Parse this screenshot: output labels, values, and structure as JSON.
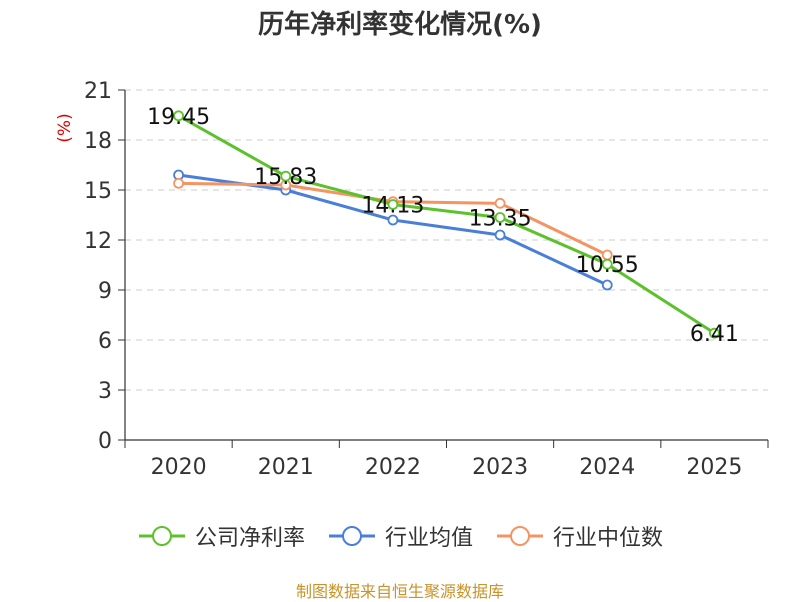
{
  "chart_data": {
    "type": "line",
    "title": "历年净利率变化情况(%)",
    "ylabel": "(%)",
    "xlabel": "",
    "categories": [
      "2020",
      "2021",
      "2022",
      "2023",
      "2024",
      "2025"
    ],
    "ylim": [
      0,
      21
    ],
    "yticks": [
      0,
      3,
      6,
      9,
      12,
      15,
      18,
      21
    ],
    "grid": true,
    "legend_position": "bottom",
    "series": [
      {
        "name": "公司净利率",
        "color": "#5cc12c",
        "values": [
          19.45,
          15.83,
          14.13,
          13.35,
          10.55,
          6.41
        ],
        "labeled": true
      },
      {
        "name": "行业均值",
        "color": "#4a7fd8",
        "values": [
          15.9,
          15.0,
          13.2,
          12.3,
          9.3,
          null
        ],
        "labeled": false
      },
      {
        "name": "行业中位数",
        "color": "#f39462",
        "values": [
          15.4,
          15.3,
          14.3,
          14.2,
          11.1,
          null
        ],
        "labeled": false
      }
    ],
    "data_labels": [
      "19.45",
      "15.83",
      "14.13",
      "13.35",
      "10.55",
      "6.41"
    ]
  },
  "source": "制图数据来自恒生聚源数据库"
}
